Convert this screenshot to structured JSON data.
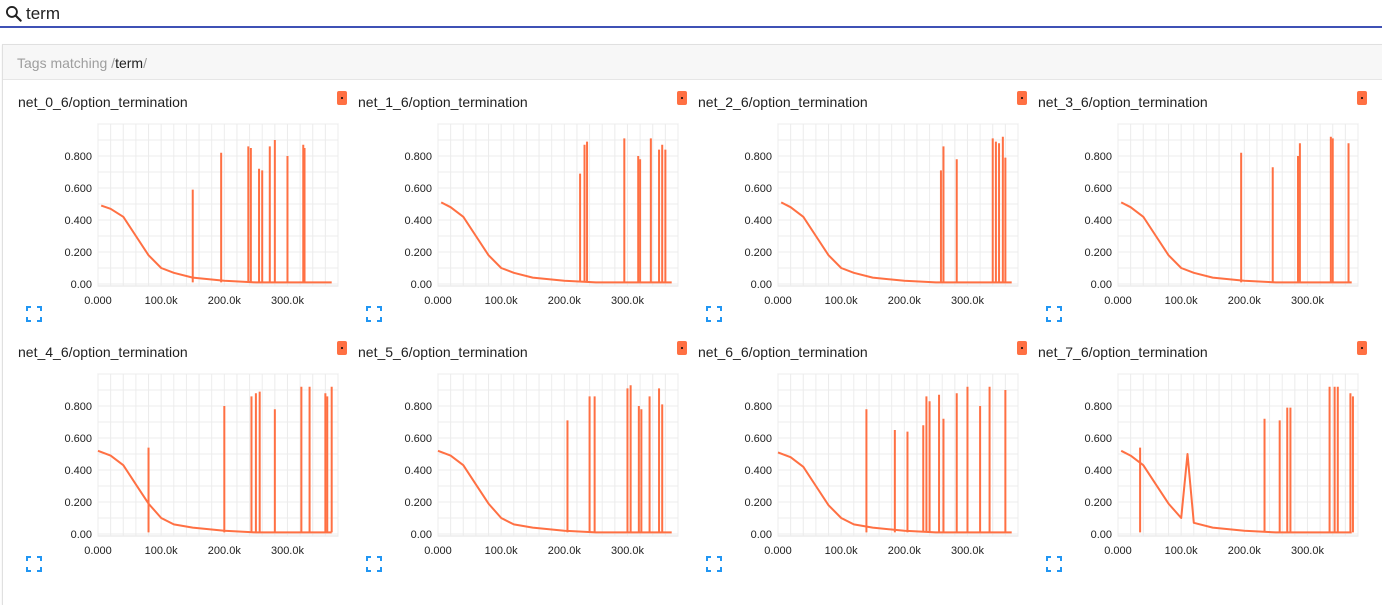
{
  "search": {
    "value": "term",
    "placeholder": ""
  },
  "header": {
    "prefix": "Tags matching ",
    "pattern_open": "/",
    "pattern": "term",
    "pattern_close": "/"
  },
  "accent_color": "#ff7043",
  "icons": {
    "search": "search-icon",
    "expand": "fullscreen-icon",
    "badge": "color-badge"
  },
  "cards": [
    {
      "title": "net_0_6/option_termination"
    },
    {
      "title": "net_1_6/option_termination"
    },
    {
      "title": "net_2_6/option_termination"
    },
    {
      "title": "net_3_6/option_termination"
    },
    {
      "title": "net_4_6/option_termination"
    },
    {
      "title": "net_5_6/option_termination"
    },
    {
      "title": "net_6_6/option_termination"
    },
    {
      "title": "net_7_6/option_termination"
    }
  ],
  "chart_data": [
    {
      "type": "line",
      "title": "net_0_6/option_termination",
      "xlim": [
        0,
        380000
      ],
      "ylim": [
        0,
        1
      ],
      "x_ticks": [
        "0.000",
        "100.0k",
        "200.0k",
        "300.0k"
      ],
      "y_ticks": [
        "0.00",
        "0.200",
        "0.400",
        "0.600",
        "0.800"
      ],
      "series": [
        {
          "x": [
            5000,
            20000,
            40000,
            60000,
            80000,
            100000,
            120000,
            150000,
            200000,
            250000,
            300000,
            370000
          ],
          "y": [
            0.49,
            0.47,
            0.42,
            0.3,
            0.18,
            0.1,
            0.07,
            0.04,
            0.02,
            0.01,
            0.01,
            0.01
          ]
        }
      ],
      "spikes": [
        {
          "x": 150000,
          "y": 0.59
        },
        {
          "x": 195000,
          "y": 0.82
        },
        {
          "x": 238000,
          "y": 0.86
        },
        {
          "x": 242000,
          "y": 0.85
        },
        {
          "x": 255000,
          "y": 0.72
        },
        {
          "x": 260000,
          "y": 0.71
        },
        {
          "x": 272000,
          "y": 0.86
        },
        {
          "x": 280000,
          "y": 0.9
        },
        {
          "x": 300000,
          "y": 0.8
        },
        {
          "x": 325000,
          "y": 0.87
        },
        {
          "x": 327000,
          "y": 0.85
        }
      ]
    },
    {
      "type": "line",
      "title": "net_1_6/option_termination",
      "xlim": [
        0,
        380000
      ],
      "ylim": [
        0,
        1
      ],
      "x_ticks": [
        "0.000",
        "100.0k",
        "200.0k",
        "300.0k"
      ],
      "y_ticks": [
        "0.00",
        "0.200",
        "0.400",
        "0.600",
        "0.800"
      ],
      "series": [
        {
          "x": [
            5000,
            20000,
            40000,
            60000,
            80000,
            100000,
            120000,
            150000,
            200000,
            250000,
            300000,
            370000
          ],
          "y": [
            0.51,
            0.48,
            0.42,
            0.3,
            0.18,
            0.1,
            0.07,
            0.04,
            0.02,
            0.01,
            0.01,
            0.01
          ]
        }
      ],
      "spikes": [
        {
          "x": 225000,
          "y": 0.69
        },
        {
          "x": 232000,
          "y": 0.87
        },
        {
          "x": 236000,
          "y": 0.89
        },
        {
          "x": 295000,
          "y": 0.91
        },
        {
          "x": 317000,
          "y": 0.8
        },
        {
          "x": 320000,
          "y": 0.78
        },
        {
          "x": 337000,
          "y": 0.91
        },
        {
          "x": 350000,
          "y": 0.84
        },
        {
          "x": 355000,
          "y": 0.87
        },
        {
          "x": 360000,
          "y": 0.84
        }
      ]
    },
    {
      "type": "line",
      "title": "net_2_6/option_termination",
      "xlim": [
        0,
        380000
      ],
      "ylim": [
        0,
        1
      ],
      "x_ticks": [
        "0.000",
        "100.0k",
        "200.0k",
        "300.0k"
      ],
      "y_ticks": [
        "0.00",
        "0.200",
        "0.400",
        "0.600",
        "0.800"
      ],
      "series": [
        {
          "x": [
            5000,
            20000,
            40000,
            60000,
            80000,
            100000,
            120000,
            150000,
            200000,
            250000,
            300000,
            370000
          ],
          "y": [
            0.51,
            0.48,
            0.42,
            0.3,
            0.18,
            0.1,
            0.07,
            0.04,
            0.02,
            0.01,
            0.01,
            0.01
          ]
        }
      ],
      "spikes": [
        {
          "x": 258000,
          "y": 0.71
        },
        {
          "x": 262000,
          "y": 0.86
        },
        {
          "x": 283000,
          "y": 0.78
        },
        {
          "x": 340000,
          "y": 0.91
        },
        {
          "x": 345000,
          "y": 0.89
        },
        {
          "x": 350000,
          "y": 0.88
        },
        {
          "x": 356000,
          "y": 0.92
        },
        {
          "x": 360000,
          "y": 0.79
        }
      ]
    },
    {
      "type": "line",
      "title": "net_3_6/option_termination",
      "xlim": [
        0,
        380000
      ],
      "ylim": [
        0,
        1
      ],
      "x_ticks": [
        "0.000",
        "100.0k",
        "200.0k",
        "300.0k"
      ],
      "y_ticks": [
        "0.00",
        "0.200",
        "0.400",
        "0.600",
        "0.800"
      ],
      "series": [
        {
          "x": [
            5000,
            20000,
            40000,
            60000,
            80000,
            100000,
            120000,
            150000,
            200000,
            250000,
            300000,
            370000
          ],
          "y": [
            0.51,
            0.48,
            0.42,
            0.3,
            0.18,
            0.1,
            0.07,
            0.04,
            0.02,
            0.01,
            0.01,
            0.01
          ]
        }
      ],
      "spikes": [
        {
          "x": 195000,
          "y": 0.82
        },
        {
          "x": 245000,
          "y": 0.73
        },
        {
          "x": 285000,
          "y": 0.8
        },
        {
          "x": 288000,
          "y": 0.88
        },
        {
          "x": 337000,
          "y": 0.92
        },
        {
          "x": 340000,
          "y": 0.91
        },
        {
          "x": 365000,
          "y": 0.88
        }
      ]
    },
    {
      "type": "line",
      "title": "net_4_6/option_termination",
      "xlim": [
        0,
        380000
      ],
      "ylim": [
        0,
        1
      ],
      "x_ticks": [
        "0.000",
        "100.0k",
        "200.0k",
        "300.0k"
      ],
      "y_ticks": [
        "0.00",
        "0.200",
        "0.400",
        "0.600",
        "0.800"
      ],
      "series": [
        {
          "x": [
            0,
            20000,
            40000,
            60000,
            80000,
            100000,
            120000,
            150000,
            200000,
            250000,
            300000,
            370000
          ],
          "y": [
            0.52,
            0.49,
            0.43,
            0.31,
            0.19,
            0.1,
            0.06,
            0.04,
            0.02,
            0.01,
            0.01,
            0.01
          ]
        }
      ],
      "spikes": [
        {
          "x": 80000,
          "y": 0.54
        },
        {
          "x": 200000,
          "y": 0.8
        },
        {
          "x": 243000,
          "y": 0.86
        },
        {
          "x": 250000,
          "y": 0.88
        },
        {
          "x": 256000,
          "y": 0.89
        },
        {
          "x": 280000,
          "y": 0.78
        },
        {
          "x": 322000,
          "y": 0.92
        },
        {
          "x": 335000,
          "y": 0.92
        },
        {
          "x": 360000,
          "y": 0.88
        },
        {
          "x": 363000,
          "y": 0.86
        },
        {
          "x": 370000,
          "y": 0.92
        }
      ]
    },
    {
      "type": "line",
      "title": "net_5_6/option_termination",
      "xlim": [
        0,
        380000
      ],
      "ylim": [
        0,
        1
      ],
      "x_ticks": [
        "0.000",
        "100.0k",
        "200.0k",
        "300.0k"
      ],
      "y_ticks": [
        "0.00",
        "0.200",
        "0.400",
        "0.600",
        "0.800"
      ],
      "series": [
        {
          "x": [
            0,
            20000,
            40000,
            60000,
            80000,
            100000,
            120000,
            150000,
            200000,
            250000,
            300000,
            370000
          ],
          "y": [
            0.52,
            0.49,
            0.43,
            0.31,
            0.19,
            0.1,
            0.06,
            0.04,
            0.02,
            0.01,
            0.01,
            0.01
          ]
        }
      ],
      "spikes": [
        {
          "x": 205000,
          "y": 0.71
        },
        {
          "x": 240000,
          "y": 0.86
        },
        {
          "x": 248000,
          "y": 0.86
        },
        {
          "x": 300000,
          "y": 0.91
        },
        {
          "x": 305000,
          "y": 0.93
        },
        {
          "x": 318000,
          "y": 0.8
        },
        {
          "x": 322000,
          "y": 0.78
        },
        {
          "x": 335000,
          "y": 0.86
        },
        {
          "x": 350000,
          "y": 0.91
        },
        {
          "x": 355000,
          "y": 0.81
        }
      ]
    },
    {
      "type": "line",
      "title": "net_6_6/option_termination",
      "xlim": [
        0,
        380000
      ],
      "ylim": [
        0,
        1
      ],
      "x_ticks": [
        "0.000",
        "100.0k",
        "200.0k",
        "300.0k"
      ],
      "y_ticks": [
        "0.00",
        "0.200",
        "0.400",
        "0.600",
        "0.800"
      ],
      "series": [
        {
          "x": [
            0,
            20000,
            40000,
            60000,
            80000,
            100000,
            120000,
            150000,
            200000,
            250000,
            300000,
            370000
          ],
          "y": [
            0.51,
            0.48,
            0.42,
            0.3,
            0.18,
            0.1,
            0.06,
            0.04,
            0.02,
            0.01,
            0.01,
            0.01
          ]
        }
      ],
      "spikes": [
        {
          "x": 140000,
          "y": 0.78
        },
        {
          "x": 185000,
          "y": 0.65
        },
        {
          "x": 205000,
          "y": 0.64
        },
        {
          "x": 230000,
          "y": 0.68
        },
        {
          "x": 235000,
          "y": 0.86
        },
        {
          "x": 240000,
          "y": 0.83
        },
        {
          "x": 255000,
          "y": 0.87
        },
        {
          "x": 262000,
          "y": 0.72
        },
        {
          "x": 283000,
          "y": 0.88
        },
        {
          "x": 300000,
          "y": 0.92
        },
        {
          "x": 320000,
          "y": 0.8
        },
        {
          "x": 335000,
          "y": 0.92
        },
        {
          "x": 360000,
          "y": 0.9
        }
      ]
    },
    {
      "type": "line",
      "title": "net_7_6/option_termination",
      "xlim": [
        0,
        380000
      ],
      "ylim": [
        0,
        1
      ],
      "x_ticks": [
        "0.000",
        "100.0k",
        "200.0k",
        "300.0k"
      ],
      "y_ticks": [
        "0.00",
        "0.200",
        "0.400",
        "0.600",
        "0.800"
      ],
      "series": [
        {
          "x": [
            5000,
            20000,
            40000,
            60000,
            80000,
            100000,
            110000,
            120000,
            150000,
            200000,
            250000,
            300000,
            370000
          ],
          "y": [
            0.52,
            0.49,
            0.43,
            0.31,
            0.19,
            0.1,
            0.5,
            0.07,
            0.04,
            0.02,
            0.01,
            0.01,
            0.01
          ]
        }
      ],
      "spikes": [
        {
          "x": 35000,
          "y": 0.54
        },
        {
          "x": 232000,
          "y": 0.72
        },
        {
          "x": 256000,
          "y": 0.71
        },
        {
          "x": 268000,
          "y": 0.79
        },
        {
          "x": 273000,
          "y": 0.79
        },
        {
          "x": 335000,
          "y": 0.92
        },
        {
          "x": 343000,
          "y": 0.92
        },
        {
          "x": 348000,
          "y": 0.92
        },
        {
          "x": 368000,
          "y": 0.88
        },
        {
          "x": 372000,
          "y": 0.86
        }
      ]
    }
  ]
}
